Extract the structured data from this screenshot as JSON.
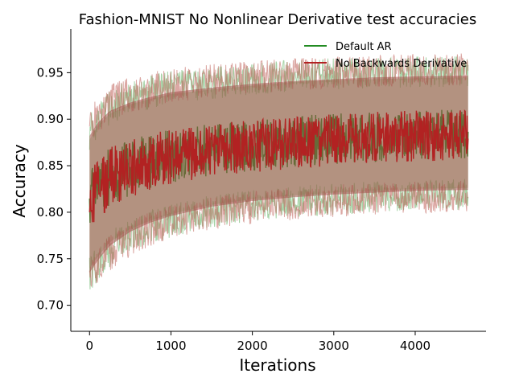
{
  "chart_data": {
    "type": "line",
    "title": "Fashion-MNIST No Nonlinear Derivative test accuracies",
    "xlabel": "Iterations",
    "ylabel": "Accuracy",
    "xlim": [
      -230,
      4870
    ],
    "ylim": [
      0.672,
      0.997
    ],
    "x_ticks": [
      0,
      1000,
      2000,
      3000,
      4000
    ],
    "y_ticks": [
      0.7,
      0.75,
      0.8,
      0.85,
      0.9,
      0.95
    ],
    "x_tick_labels": [
      "0",
      "1000",
      "2000",
      "3000",
      "4000"
    ],
    "y_tick_labels": [
      "0.70",
      "0.75",
      "0.80",
      "0.85",
      "0.90",
      "0.95"
    ],
    "grid": false,
    "legend_position": "top-right",
    "x_range": [
      0,
      4650
    ],
    "series": [
      {
        "name": "Default AR",
        "color": "#228b22",
        "mean": [
          [
            0,
            0.812
          ],
          [
            100,
            0.825
          ],
          [
            250,
            0.838
          ],
          [
            500,
            0.848
          ],
          [
            750,
            0.855
          ],
          [
            1000,
            0.86
          ],
          [
            1500,
            0.867
          ],
          [
            2000,
            0.872
          ],
          [
            2500,
            0.876
          ],
          [
            3000,
            0.879
          ],
          [
            3500,
            0.881
          ],
          [
            4000,
            0.883
          ],
          [
            4650,
            0.885
          ]
        ],
        "band_low": [
          [
            0,
            0.74
          ],
          [
            100,
            0.752
          ],
          [
            250,
            0.768
          ],
          [
            500,
            0.782
          ],
          [
            750,
            0.791
          ],
          [
            1000,
            0.798
          ],
          [
            1500,
            0.808
          ],
          [
            2000,
            0.814
          ],
          [
            2500,
            0.818
          ],
          [
            3000,
            0.821
          ],
          [
            3500,
            0.823
          ],
          [
            4000,
            0.825
          ],
          [
            4650,
            0.826
          ]
        ],
        "band_high": [
          [
            0,
            0.878
          ],
          [
            100,
            0.893
          ],
          [
            250,
            0.906
          ],
          [
            500,
            0.916
          ],
          [
            750,
            0.922
          ],
          [
            1000,
            0.927
          ],
          [
            1500,
            0.932
          ],
          [
            2000,
            0.936
          ],
          [
            2500,
            0.94
          ],
          [
            3000,
            0.942
          ],
          [
            3500,
            0.943
          ],
          [
            4000,
            0.944
          ],
          [
            4650,
            0.945
          ]
        ]
      },
      {
        "name": "No Backwards Derivative",
        "color": "#b22222",
        "mean": [
          [
            0,
            0.81
          ],
          [
            100,
            0.824
          ],
          [
            250,
            0.837
          ],
          [
            500,
            0.847
          ],
          [
            750,
            0.854
          ],
          [
            1000,
            0.859
          ],
          [
            1500,
            0.866
          ],
          [
            2000,
            0.871
          ],
          [
            2500,
            0.875
          ],
          [
            3000,
            0.878
          ],
          [
            3500,
            0.88
          ],
          [
            4000,
            0.882
          ],
          [
            4650,
            0.884
          ]
        ],
        "band_low": [
          [
            0,
            0.735
          ],
          [
            100,
            0.748
          ],
          [
            250,
            0.764
          ],
          [
            500,
            0.779
          ],
          [
            750,
            0.789
          ],
          [
            1000,
            0.796
          ],
          [
            1500,
            0.806
          ],
          [
            2000,
            0.812
          ],
          [
            2500,
            0.816
          ],
          [
            3000,
            0.819
          ],
          [
            3500,
            0.821
          ],
          [
            4000,
            0.823
          ],
          [
            4650,
            0.824
          ]
        ],
        "band_high": [
          [
            0,
            0.882
          ],
          [
            100,
            0.896
          ],
          [
            250,
            0.909
          ],
          [
            500,
            0.918
          ],
          [
            750,
            0.924
          ],
          [
            1000,
            0.929
          ],
          [
            1500,
            0.934
          ],
          [
            2000,
            0.938
          ],
          [
            2500,
            0.941
          ],
          [
            3000,
            0.943
          ],
          [
            3500,
            0.945
          ],
          [
            4000,
            0.946
          ],
          [
            4650,
            0.947
          ]
        ]
      }
    ]
  }
}
